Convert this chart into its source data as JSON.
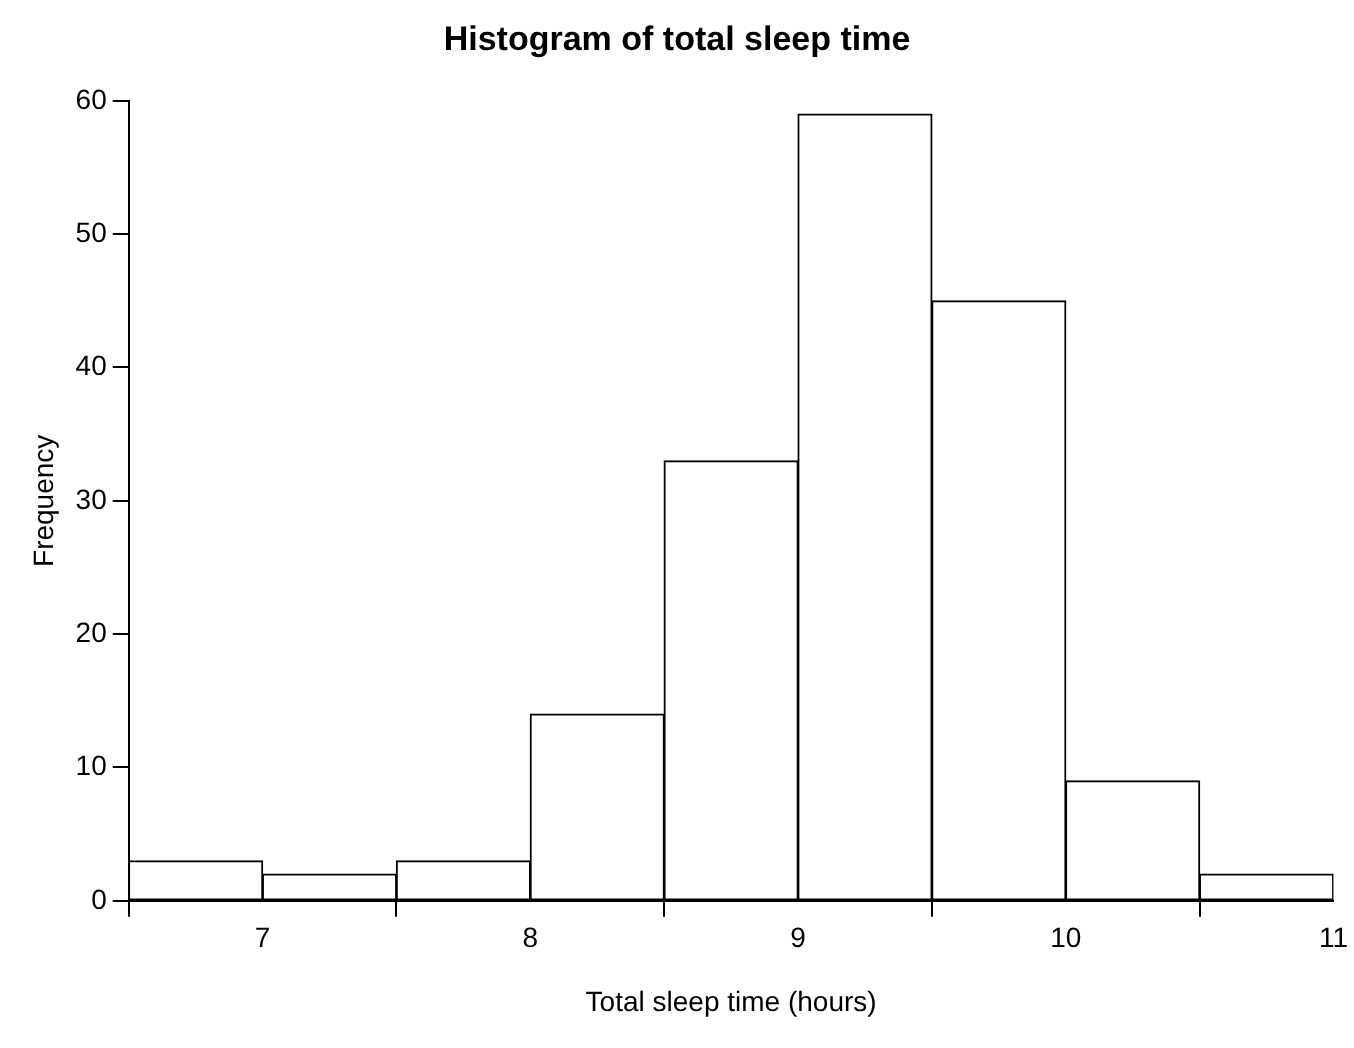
{
  "chart_data": {
    "type": "histogram",
    "title": "Histogram of total sleep time",
    "xlabel": "Total sleep time (hours)",
    "ylabel": "Frequency",
    "bins": [
      6.5,
      7,
      7.5,
      8,
      8.5,
      9,
      9.5,
      10,
      10.5,
      11
    ],
    "values": [
      3,
      2,
      3,
      14,
      33,
      59,
      45,
      9,
      2
    ],
    "color": "#ffffff",
    "xlim": [
      6.5,
      11
    ],
    "xticks": [
      7,
      8,
      9,
      10,
      11
    ],
    "ylim": [
      0,
      60
    ],
    "yticks": [
      0,
      10,
      20,
      30,
      40,
      50,
      60
    ],
    "grid": false,
    "legend": false
  }
}
